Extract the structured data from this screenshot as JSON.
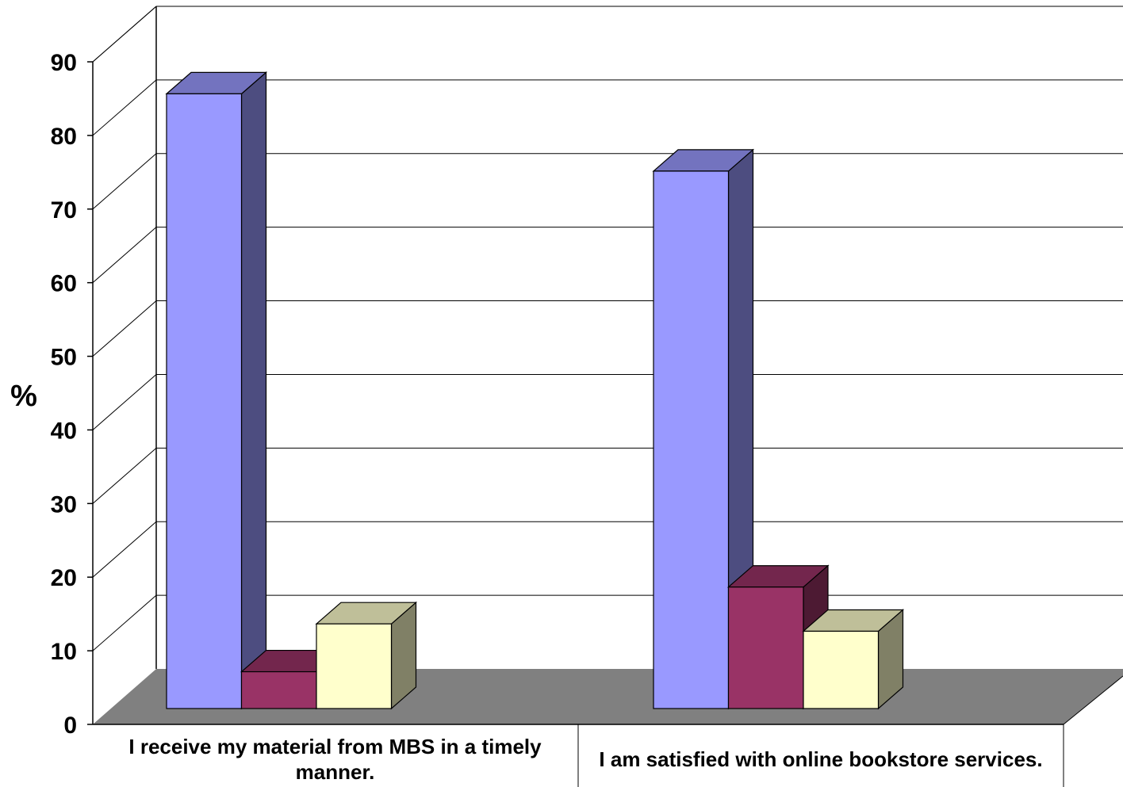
{
  "chart_data": {
    "type": "bar",
    "title": "",
    "xlabel": "",
    "ylabel": "%",
    "ylim": [
      0,
      90
    ],
    "yticks": [
      "0",
      "10",
      "20",
      "30",
      "40",
      "50",
      "60",
      "70",
      "80",
      "90"
    ],
    "grid": true,
    "categories": [
      "I receive my material from MBS in a timely manner.",
      "I am satisfied with online bookstore services."
    ],
    "series": [
      {
        "values": [
          83.5,
          73.0
        ],
        "color": "#9999ff"
      },
      {
        "values": [
          5.0,
          16.5
        ],
        "color": "#993366"
      },
      {
        "values": [
          11.5,
          10.5
        ],
        "color": "#ffffcc"
      }
    ]
  }
}
